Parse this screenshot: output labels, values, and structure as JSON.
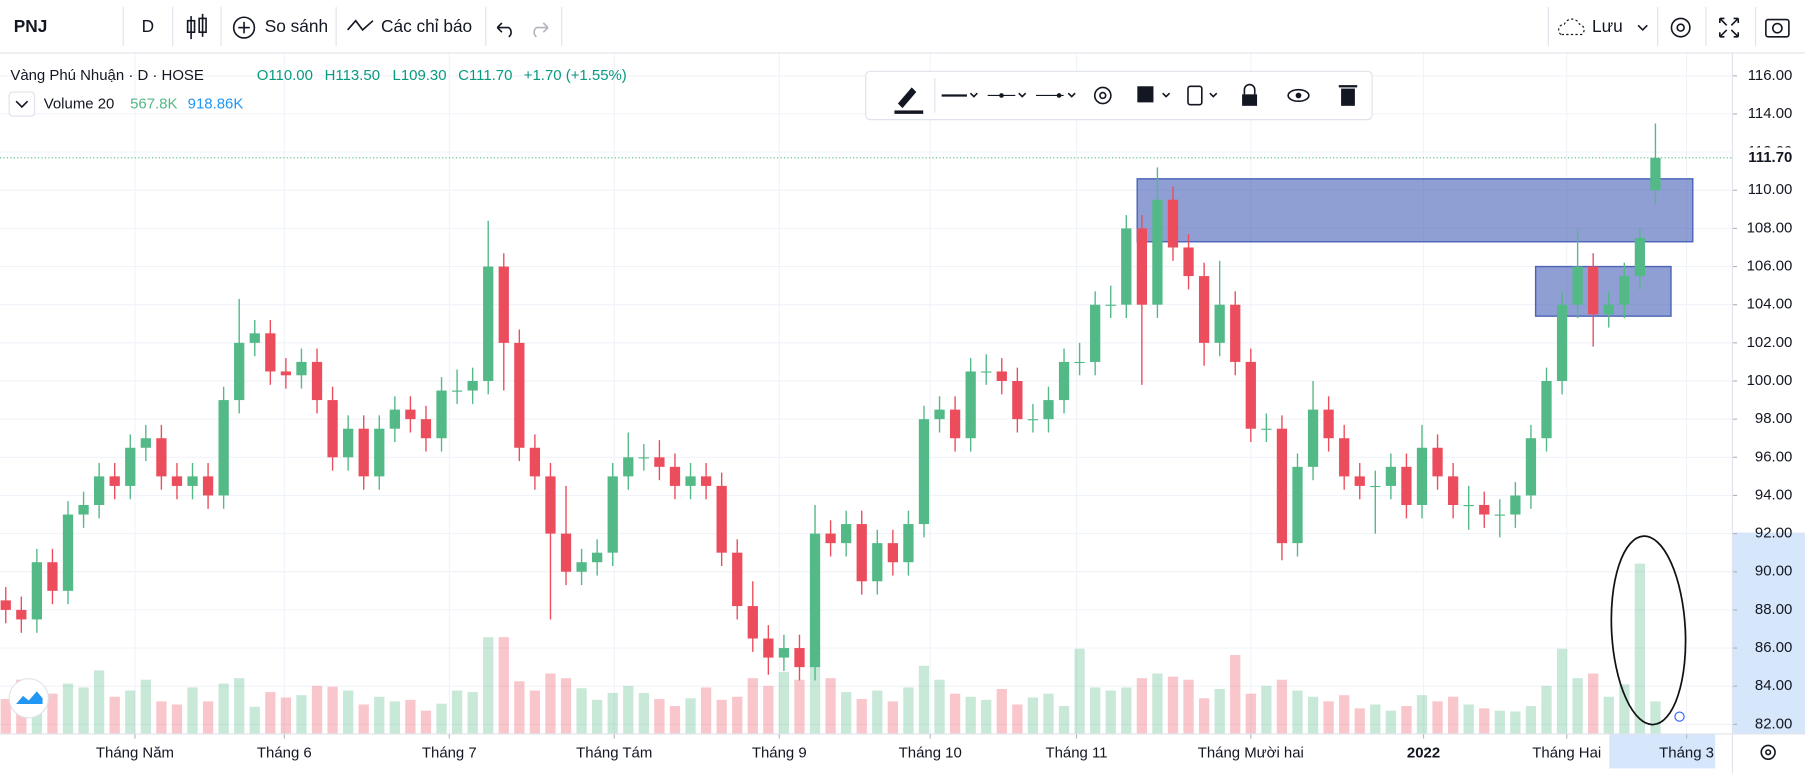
{
  "toolbar": {
    "symbol": "PNJ",
    "interval": "D",
    "compare": "So sánh",
    "indicators": "Các chỉ báo",
    "save": "Lưu"
  },
  "chart_data": {
    "type": "candlestick",
    "title": "Vàng Phú Nhuận · D · HOSE",
    "ohlc_labels": [
      "O110.00",
      "H113.50",
      "L109.30",
      "C111.70",
      "+1.70 (+1.55%)"
    ],
    "volume_label": "Volume 20",
    "volume_values": [
      "567.8K",
      "918.86K"
    ],
    "up_color": "#53b987",
    "down_color": "#eb4d5c",
    "grid": true,
    "x": [
      0,
      1,
      2,
      3,
      4,
      5,
      6,
      7,
      8,
      9,
      10,
      11,
      12,
      13,
      14,
      15,
      16,
      17,
      18,
      19,
      20,
      21,
      22,
      23,
      24,
      25,
      26,
      27,
      28,
      29,
      30,
      31,
      32,
      33,
      34,
      35,
      36,
      37,
      38,
      39,
      40,
      41,
      42,
      43,
      44,
      45,
      46,
      47,
      48,
      49,
      50,
      51,
      52,
      53,
      54,
      55,
      56,
      57,
      58,
      59,
      60,
      61,
      62,
      63,
      64,
      65,
      66,
      67,
      68,
      69,
      70,
      71,
      72,
      73,
      74,
      75,
      76,
      77,
      78,
      79,
      80,
      81,
      82,
      83,
      84,
      85,
      86,
      87,
      88,
      89,
      90,
      91,
      92,
      93,
      94,
      95,
      96,
      97,
      98,
      99,
      100,
      101,
      102,
      103,
      104,
      105,
      106
    ],
    "open": [
      88.5,
      88,
      87.5,
      90.5,
      89,
      93,
      93.5,
      95,
      94.5,
      96.5,
      97,
      95,
      94.5,
      95,
      94,
      99,
      102,
      102.5,
      100.5,
      100.3,
      101,
      99,
      96,
      97.5,
      95,
      97.5,
      98.5,
      98,
      97,
      99.5,
      99.5,
      100,
      106,
      102,
      96.5,
      95,
      92,
      90,
      90.5,
      91,
      95,
      96,
      96,
      95.5,
      94.5,
      95,
      94.5,
      91,
      88.2,
      86.5,
      85.5,
      86,
      85,
      92,
      91.5,
      92.5,
      89.5,
      91.5,
      90.5,
      92.5,
      98,
      98.5,
      97,
      100.5,
      100.5,
      100,
      98,
      98,
      99,
      101,
      101,
      104,
      104,
      108,
      104,
      109.5,
      107,
      105.5,
      102,
      104,
      101,
      97.5,
      97.5,
      91.5,
      95.5,
      98.5,
      97,
      95,
      94.5,
      94.5,
      95.5,
      93.5,
      96.5,
      95,
      93.5,
      93.5,
      93,
      93,
      94,
      97,
      100,
      104,
      106,
      103.5,
      104,
      105.5,
      110
    ],
    "high": [
      89.2,
      88.7,
      91.2,
      91.2,
      93.7,
      94.2,
      95.7,
      95.7,
      97.2,
      97.7,
      97.7,
      95.7,
      95.7,
      95.7,
      99.7,
      104.3,
      103.2,
      103.2,
      101.2,
      101.7,
      101.7,
      99.7,
      98.2,
      98.2,
      98.2,
      99.2,
      99.2,
      98.7,
      100.2,
      100.6,
      100.7,
      108.4,
      106.7,
      102.7,
      97.2,
      95.7,
      94.5,
      91.2,
      91.7,
      95.7,
      97.3,
      96.7,
      96.9,
      96.2,
      95.7,
      95.7,
      95.2,
      91.7,
      89.5,
      87.2,
      86.7,
      86.7,
      93.5,
      92.7,
      93.2,
      93.2,
      92.2,
      92.2,
      93.2,
      98.7,
      99.2,
      99.2,
      101.2,
      101.4,
      101.2,
      100.7,
      98.8,
      99.7,
      101.7,
      102,
      104.7,
      105,
      108.7,
      108.7,
      111.2,
      110.2,
      107.7,
      106.2,
      106.3,
      104.7,
      101.7,
      98.3,
      98.2,
      96.2,
      100,
      99.2,
      97.7,
      95.7,
      95.3,
      96.2,
      96.2,
      97.7,
      97.2,
      95.7,
      94.5,
      94.2,
      93.8,
      94.7,
      97.7,
      100.7,
      104.7,
      108,
      106.7,
      104.7,
      106.2,
      108,
      113.5
    ],
    "low": [
      87.3,
      86.8,
      86.8,
      88.3,
      88.3,
      92.3,
      92.8,
      93.8,
      93.8,
      95.8,
      94.3,
      93.8,
      93.8,
      93.3,
      93.3,
      98.3,
      101.3,
      99.8,
      99.6,
      99.6,
      98.3,
      95.3,
      95.3,
      94.3,
      94.3,
      96.8,
      97.3,
      96.3,
      96.3,
      98.8,
      98.8,
      99.3,
      99.5,
      95.8,
      94.3,
      87.5,
      89.3,
      89.3,
      89.8,
      90.3,
      94.3,
      95.3,
      94.8,
      93.8,
      93.8,
      93.8,
      90.3,
      87.5,
      85.8,
      84.6,
      84.8,
      84.3,
      84.3,
      90.8,
      90.8,
      88.8,
      88.8,
      89.8,
      89.8,
      91.8,
      97.3,
      96.3,
      96.3,
      99.8,
      99.3,
      97.3,
      97.3,
      97.3,
      98.3,
      100.3,
      100.3,
      103.3,
      103.3,
      99.8,
      103.3,
      106.3,
      104.8,
      100.8,
      101.3,
      100.3,
      96.8,
      96.8,
      90.6,
      90.8,
      94.8,
      96.3,
      94.3,
      93.8,
      92,
      93.8,
      92.8,
      92.8,
      94.3,
      92.8,
      92.2,
      92.3,
      91.8,
      92.3,
      93.3,
      96.3,
      99.3,
      103.3,
      101.8,
      102.8,
      103.3,
      104.8,
      109.3
    ],
    "close": [
      88,
      87.5,
      90.5,
      89,
      93,
      93.5,
      95,
      94.5,
      96.5,
      97,
      95,
      94.5,
      95,
      94,
      99,
      102,
      102.5,
      100.5,
      100.3,
      101,
      99,
      96,
      97.5,
      95,
      97.5,
      98.5,
      98,
      97,
      99.5,
      99.5,
      100,
      106,
      102,
      96.5,
      95,
      92,
      90,
      90.5,
      91,
      95,
      96,
      96,
      95.5,
      94.5,
      95,
      94.5,
      91,
      88.2,
      86.5,
      85.5,
      86,
      85,
      92,
      91.5,
      92.5,
      89.5,
      91.5,
      90.5,
      92.5,
      98,
      98.5,
      97,
      100.5,
      100.5,
      100,
      98,
      98,
      99,
      101,
      101,
      104,
      104,
      108,
      104,
      109.5,
      107,
      105.5,
      102,
      104,
      101,
      97.5,
      97.5,
      91.5,
      95.5,
      98.5,
      97,
      95,
      94.5,
      94.5,
      95.5,
      93.5,
      96.5,
      95,
      93.5,
      93.5,
      93,
      93,
      94,
      97,
      100,
      104,
      106,
      103.5,
      104,
      105.5,
      107.5,
      111.7
    ],
    "volume": [
      450,
      700,
      380,
      520,
      650,
      600,
      820,
      480,
      560,
      700,
      420,
      380,
      600,
      420,
      650,
      720,
      350,
      540,
      470,
      500,
      620,
      610,
      560,
      380,
      480,
      420,
      440,
      300,
      390,
      560,
      540,
      1250,
      1250,
      680,
      560,
      780,
      720,
      590,
      440,
      530,
      620,
      530,
      450,
      360,
      460,
      600,
      440,
      480,
      720,
      620,
      800,
      700,
      880,
      720,
      540,
      450,
      560,
      420,
      600,
      880,
      700,
      520,
      480,
      440,
      580,
      380,
      470,
      520,
      360,
      1100,
      600,
      560,
      600,
      720,
      780,
      740,
      700,
      460,
      580,
      1020,
      520,
      620,
      700,
      560,
      480,
      420,
      500,
      330,
      380,
      300,
      360,
      500,
      420,
      480,
      380,
      330,
      300,
      290,
      360,
      620,
      1100,
      720,
      780,
      480,
      640,
      2200,
      420
    ],
    "volume_ylim": [
      0,
      8800
    ],
    "xlim": [
      -0.37,
      110.95
    ],
    "xticks": [
      {
        "value": 8.3,
        "label": "Tháng Năm"
      },
      {
        "value": 17.9,
        "label": "Tháng 6"
      },
      {
        "value": 28.5,
        "label": "Tháng 7"
      },
      {
        "value": 39.1,
        "label": "Tháng Tám"
      },
      {
        "value": 49.7,
        "label": "Tháng 9"
      },
      {
        "value": 59.4,
        "label": "Tháng 10"
      },
      {
        "value": 68.8,
        "label": "Tháng 11"
      },
      {
        "value": 80.0,
        "label": "Tháng Mười hai"
      },
      {
        "value": 91.1,
        "label": "2022"
      },
      {
        "value": 100.3,
        "label": "Tháng Hai"
      },
      {
        "value": 108.0,
        "label": "Tháng 3"
      }
    ],
    "ylim": [
      81.5,
      117.2
    ],
    "yticks": [
      {
        "value": 82,
        "label": "82.00"
      },
      {
        "value": 84,
        "label": "84.00"
      },
      {
        "value": 86,
        "label": "86.00"
      },
      {
        "value": 88,
        "label": "88.00"
      },
      {
        "value": 90,
        "label": "90.00"
      },
      {
        "value": 92,
        "label": "92.00"
      },
      {
        "value": 94,
        "label": "94.00"
      },
      {
        "value": 96,
        "label": "96.00"
      },
      {
        "value": 98,
        "label": "98.00"
      },
      {
        "value": 100,
        "label": "100.00"
      },
      {
        "value": 102,
        "label": "102.00"
      },
      {
        "value": 104,
        "label": "104.00"
      },
      {
        "value": 106,
        "label": "106.00"
      },
      {
        "value": 108,
        "label": "108.00"
      },
      {
        "value": 110,
        "label": "110.00"
      },
      {
        "value": 112,
        "label": "112.00"
      },
      {
        "value": 114,
        "label": "114.00"
      },
      {
        "value": 116,
        "label": "116.00"
      }
    ],
    "last_price": {
      "value": 111.7,
      "label": "111.70"
    },
    "box_color": "#4a63b8",
    "boxes": [
      {
        "x": [
          72.7,
          108.4
        ],
        "y": [
          107.3,
          110.6
        ]
      },
      {
        "x": [
          98.3,
          107
        ],
        "y": [
          103.4,
          106
        ]
      }
    ]
  }
}
